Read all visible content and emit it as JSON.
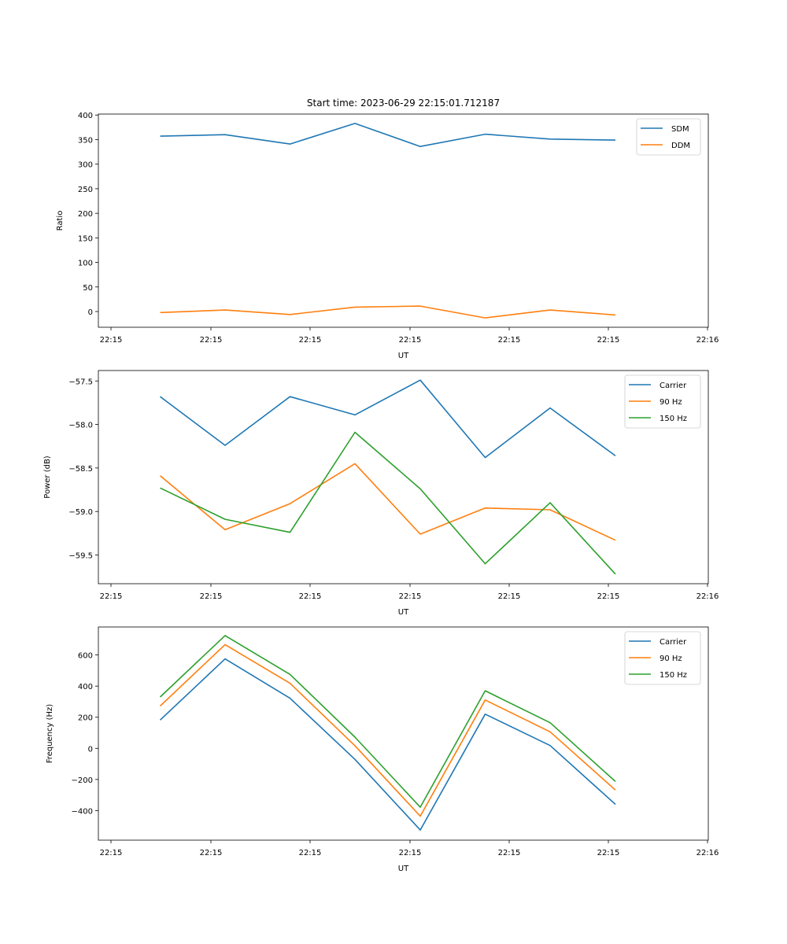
{
  "title": "Start time: 2023-06-29 22:15:01.712187",
  "colors": {
    "blue": "#1f77b4",
    "orange": "#ff7f0e",
    "green": "#2ca02c"
  },
  "chart_data": [
    {
      "type": "line",
      "xlabel": "UT",
      "ylabel": "Ratio",
      "x_tick_labels": [
        "22:15",
        "22:15",
        "22:15",
        "22:15",
        "22:15",
        "22:15",
        "22:16"
      ],
      "y_ticks": [
        0,
        50,
        100,
        150,
        200,
        250,
        300,
        350,
        400
      ],
      "y_tick_labels": [
        "0",
        "50",
        "100",
        "150",
        "200",
        "250",
        "300",
        "350",
        "400"
      ],
      "ylim": [
        -32,
        402
      ],
      "legend_position": "top-right",
      "series": [
        {
          "name": "SDM",
          "color": "#1f77b4",
          "values": [
            357,
            360,
            341,
            383,
            336,
            361,
            351,
            349
          ]
        },
        {
          "name": "DDM",
          "color": "#ff7f0e",
          "values": [
            -2,
            3,
            -6,
            9,
            11,
            -13,
            3,
            -7
          ]
        }
      ]
    },
    {
      "type": "line",
      "xlabel": "UT",
      "ylabel": "Power (dB)",
      "x_tick_labels": [
        "22:15",
        "22:15",
        "22:15",
        "22:15",
        "22:15",
        "22:15",
        "22:16"
      ],
      "y_ticks": [
        -59.5,
        -59.0,
        -58.5,
        -58.0,
        -57.5
      ],
      "y_tick_labels": [
        "−59.5",
        "−59.0",
        "−58.5",
        "−58.0",
        "−57.5"
      ],
      "ylim": [
        -59.83,
        -57.38
      ],
      "legend_position": "top-right",
      "series": [
        {
          "name": "Carrier",
          "color": "#1f77b4",
          "values": [
            -57.68,
            -58.24,
            -57.68,
            -57.89,
            -57.49,
            -58.38,
            -57.81,
            -58.36
          ]
        },
        {
          "name": "90 Hz",
          "color": "#ff7f0e",
          "values": [
            -58.59,
            -59.21,
            -58.91,
            -58.45,
            -59.26,
            -58.96,
            -58.98,
            -59.33
          ]
        },
        {
          "name": "150 Hz",
          "color": "#2ca02c",
          "values": [
            -58.73,
            -59.09,
            -59.24,
            -58.09,
            -58.74,
            -59.6,
            -58.9,
            -59.72
          ]
        }
      ]
    },
    {
      "type": "line",
      "xlabel": "UT",
      "ylabel": "Frequency (Hz)",
      "x_tick_labels": [
        "22:15",
        "22:15",
        "22:15",
        "22:15",
        "22:15",
        "22:15",
        "22:16"
      ],
      "y_ticks": [
        -400,
        -200,
        0,
        200,
        400,
        600
      ],
      "y_tick_labels": [
        "−400",
        "−200",
        "0",
        "200",
        "400",
        "600"
      ],
      "ylim": [
        -590,
        780
      ],
      "legend_position": "top-right",
      "series": [
        {
          "name": "Carrier",
          "color": "#1f77b4",
          "values": [
            182,
            575,
            322,
            -71,
            -525,
            220,
            18,
            -360
          ]
        },
        {
          "name": "90 Hz",
          "color": "#ff7f0e",
          "values": [
            272,
            667,
            418,
            17,
            -436,
            311,
            106,
            -268
          ]
        },
        {
          "name": "150 Hz",
          "color": "#2ca02c",
          "values": [
            330,
            725,
            475,
            72,
            -378,
            370,
            165,
            -213
          ]
        }
      ]
    }
  ]
}
